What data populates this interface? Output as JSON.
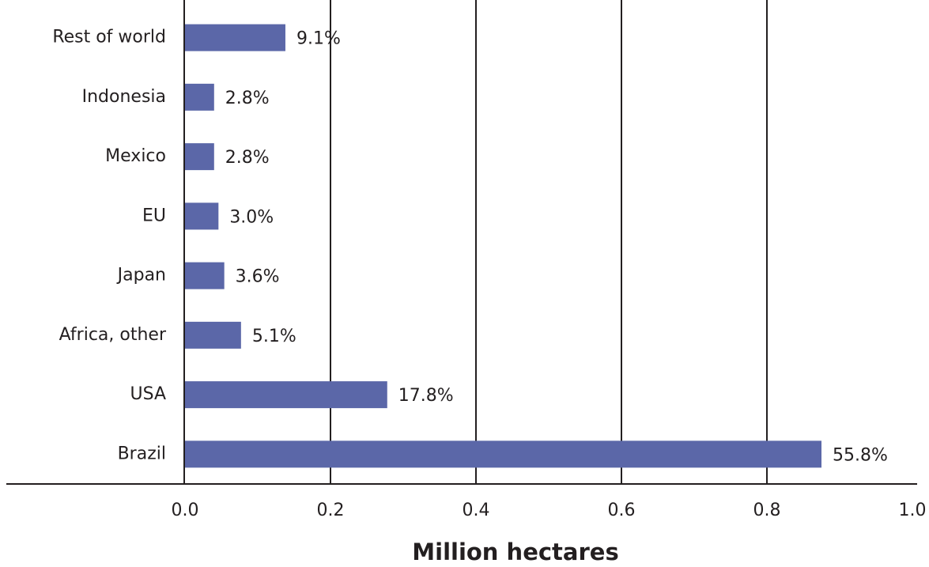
{
  "chart_data": {
    "type": "hbar",
    "x_label": "Million hectares",
    "categories": [
      "Rest of world",
      "Indonesia",
      "Mexico",
      "EU",
      "Japan",
      "Africa, other",
      "USA",
      "Brazil"
    ],
    "values": [
      0.138,
      0.04,
      0.04,
      0.046,
      0.054,
      0.077,
      0.278,
      0.875
    ],
    "color": "#5b67a8",
    "shares": {
      "values": [
        9.1,
        2.8,
        2.8,
        3.0,
        3.6,
        5.1,
        17.8,
        55.8
      ],
      "value_labels": [
        "9.1%",
        "2.8%",
        "2.8%",
        "3.0%",
        "3.6%",
        "5.1%",
        "17.8%",
        "55.8%"
      ]
    },
    "xlim": [
      0,
      1
    ],
    "xticks": [
      {
        "value": 0,
        "label": "0.0"
      },
      {
        "value": 0.2,
        "label": "0.2"
      },
      {
        "value": 0.4,
        "label": "0.4"
      },
      {
        "value": 0.6,
        "label": "0.6"
      },
      {
        "value": 0.8,
        "label": "0.8"
      },
      {
        "value": 1,
        "label": "1.0"
      }
    ],
    "grid": true
  }
}
